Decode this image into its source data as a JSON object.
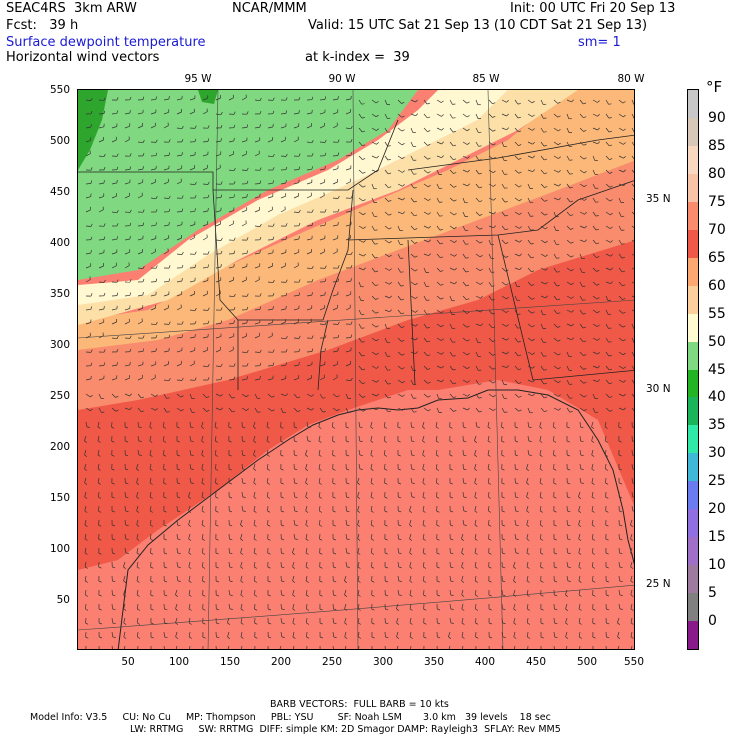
{
  "header": {
    "model": "SEAC4RS  3km ARW",
    "center": "NCAR/MMM",
    "init": "Init: 00 UTC Fri 20 Sep 13",
    "fcst": "Fcst:   39 h",
    "valid": "Valid: 15 UTC Sat 21 Sep 13 (10 CDT Sat 21 Sep 13)",
    "field": "Surface dewpoint temperature",
    "sm": "sm= 1",
    "vectors": "Horizontal wind vectors",
    "kindex": "at k-index =  39"
  },
  "map": {
    "lon_labels": [
      "95 W",
      "90 W",
      "85 W",
      "80 W"
    ],
    "lat_labels": [
      "35 N",
      "30 N",
      "25 N"
    ],
    "x_ticks": [
      "50",
      "100",
      "150",
      "200",
      "250",
      "300",
      "350",
      "400",
      "450",
      "500",
      "550"
    ],
    "y_ticks": [
      "550",
      "500",
      "450",
      "400",
      "350",
      "300",
      "250",
      "200",
      "150",
      "100",
      "50"
    ],
    "gulf_dewpoint_band": "75",
    "colors": {
      "green_dark": "#2ea62e",
      "green_light": "#80d880",
      "cream": "#fff8d0",
      "tan": "#fce0a8",
      "peach": "#fcb878",
      "salmon": "#f88c6c",
      "red": "#f05848",
      "red_deep": "#e03a32",
      "gulf": "#fb8072"
    }
  },
  "colorbar": {
    "unit": "°F",
    "labels": [
      "90",
      "85",
      "80",
      "75",
      "70",
      "65",
      "60",
      "55",
      "50",
      "45",
      "40",
      "35",
      "30",
      "25",
      "20",
      "15",
      "10",
      "5",
      "0"
    ],
    "colors": [
      "#c8c8c8",
      "#d8c8b8",
      "#f8d8c0",
      "#f8c4a8",
      "#f88c6c",
      "#f05848",
      "#fca870",
      "#fcd09c",
      "#fffad0",
      "#80d880",
      "#22b422",
      "#1cb45a",
      "#30e8a8",
      "#40b8d8",
      "#6a7cf0",
      "#9070e0",
      "#a070c8",
      "#9e7a9e",
      "#808080",
      "#8a1a8a"
    ]
  },
  "footer": {
    "barb": "BARB VECTORS:  FULL BARB = 10 kts",
    "line1": "Model Info: V3.5     CU: No Cu     MP: Thompson     PBL: YSU        SF: Noah LSM       3.0 km   39 levels    18 sec",
    "line2": "LW: RRTMG     SW: RRTMG  DIFF: simple KM: 2D Smagor DAMP: Rayleigh3  SFLAY: Rev MM5"
  }
}
